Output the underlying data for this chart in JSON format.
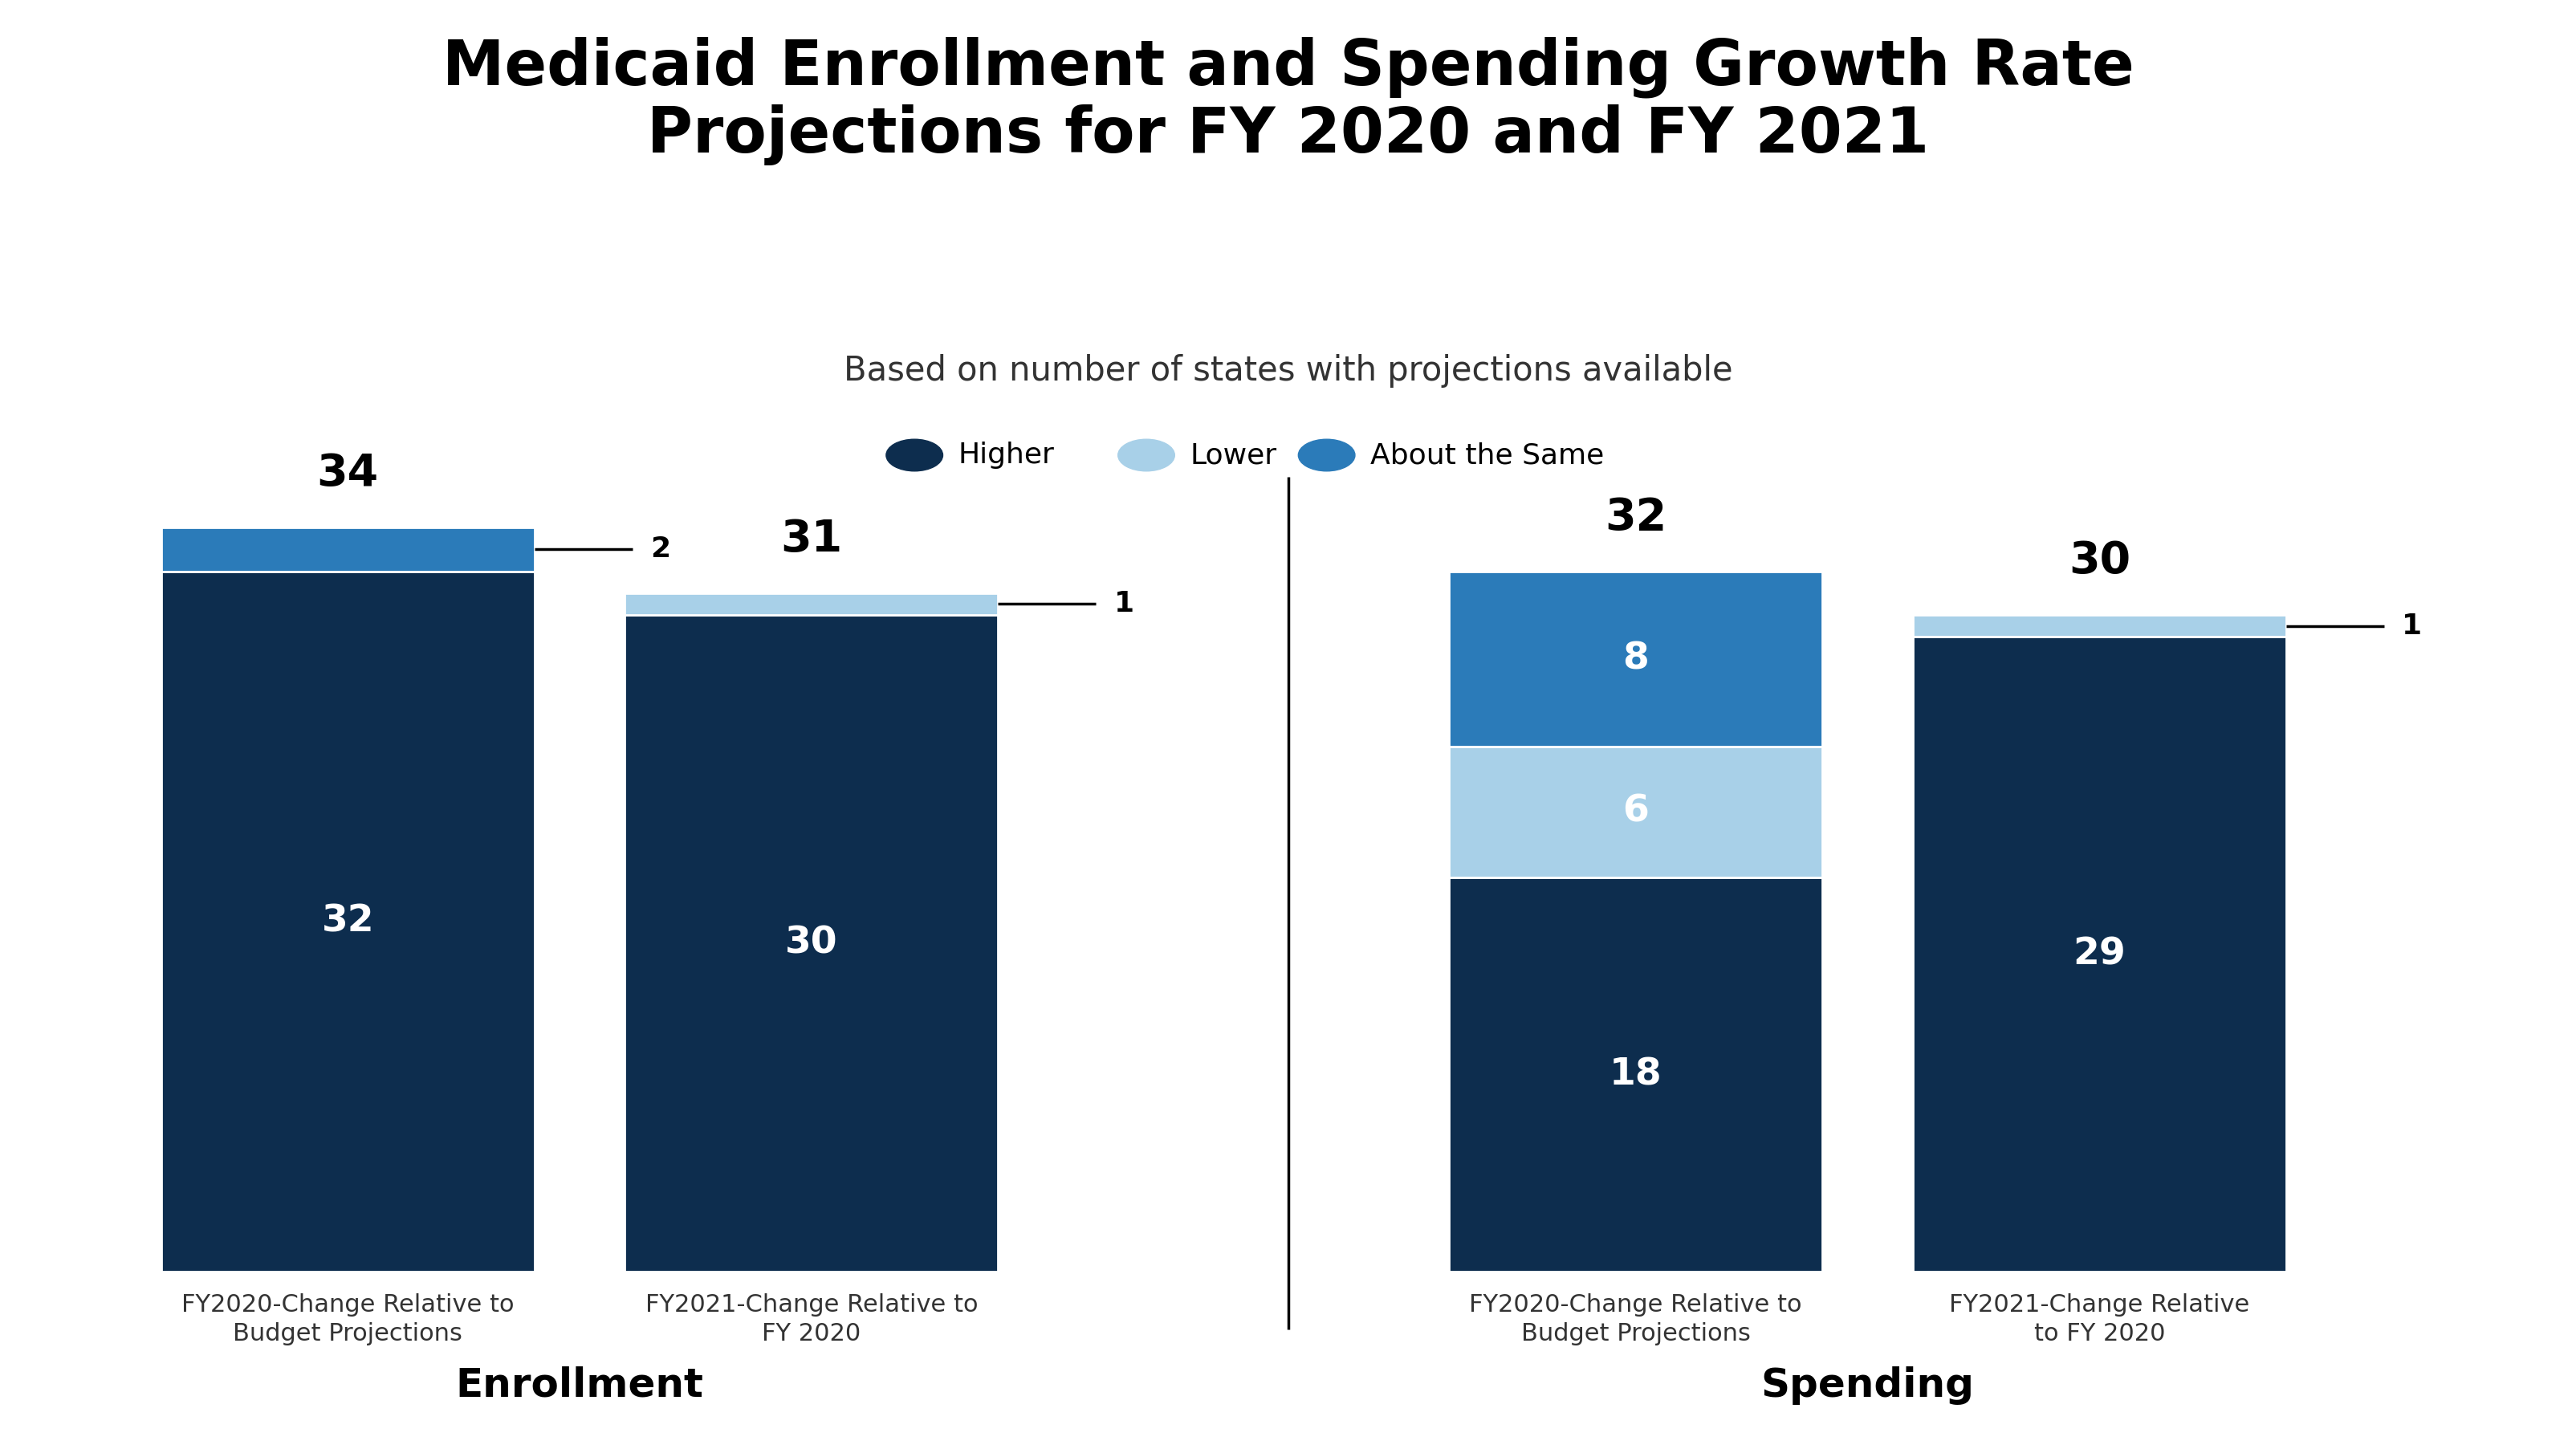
{
  "title": "Medicaid Enrollment and Spending Growth Rate\nProjections for FY 2020 and FY 2021",
  "subtitle": "Based on number of states with projections available",
  "background_color": "#ffffff",
  "color_higher": "#0d2d4e",
  "color_lower": "#a8d0e8",
  "color_about_same": "#2b7bb9",
  "bars": [
    {
      "group": "Enrollment",
      "label": "FY2020-Change Relative to\nBudget Projections",
      "total": 34,
      "segments": [
        {
          "value": 32,
          "color": "#0d2d4e",
          "label_color": "#ffffff",
          "show_label": true
        },
        {
          "value": 2,
          "color": "#2b7bb9",
          "label_color": null,
          "show_label": false
        }
      ],
      "side_label": "2"
    },
    {
      "group": "Enrollment",
      "label": "FY2021-Change Relative to\nFY 2020",
      "total": 31,
      "segments": [
        {
          "value": 30,
          "color": "#0d2d4e",
          "label_color": "#ffffff",
          "show_label": true
        },
        {
          "value": 1,
          "color": "#a8d0e8",
          "label_color": null,
          "show_label": false
        }
      ],
      "side_label": "1"
    },
    {
      "group": "Spending",
      "label": "FY2020-Change Relative to\nBudget Projections",
      "total": 32,
      "segments": [
        {
          "value": 18,
          "color": "#0d2d4e",
          "label_color": "#ffffff",
          "show_label": true
        },
        {
          "value": 6,
          "color": "#a8d0e8",
          "label_color": "#ffffff",
          "show_label": true
        },
        {
          "value": 8,
          "color": "#2b7bb9",
          "label_color": "#ffffff",
          "show_label": true
        }
      ],
      "side_label": null
    },
    {
      "group": "Spending",
      "label": "FY2021-Change Relative\nto FY 2020",
      "total": 30,
      "segments": [
        {
          "value": 29,
          "color": "#0d2d4e",
          "label_color": "#ffffff",
          "show_label": true
        },
        {
          "value": 1,
          "color": "#a8d0e8",
          "label_color": null,
          "show_label": false
        }
      ],
      "side_label": "1"
    }
  ],
  "title_fontsize": 56,
  "subtitle_fontsize": 30,
  "bar_label_fontsize": 34,
  "total_label_fontsize": 40,
  "group_label_fontsize": 36,
  "xlabel_fontsize": 22,
  "legend_fontsize": 26,
  "side_label_fontsize": 26
}
